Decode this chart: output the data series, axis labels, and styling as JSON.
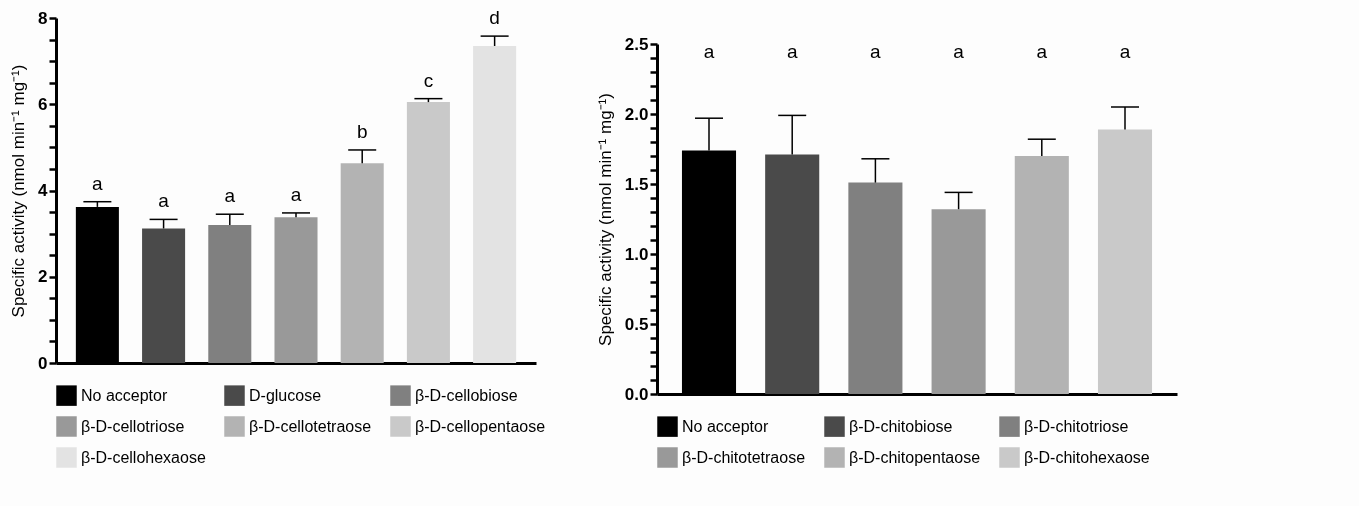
{
  "chart_data": [
    {
      "type": "bar",
      "ylabel": "Specific activity (nmol min⁻¹ mg⁻¹)",
      "categories": [
        null,
        null,
        null,
        null,
        null,
        null,
        null
      ],
      "series": [
        {
          "name": "No acceptor",
          "color": "#000000",
          "values": [
            3.62,
            null,
            null,
            null,
            null,
            null,
            null
          ],
          "errors": [
            [
              3.62,
              3.74
            ],
            null,
            null,
            null,
            null,
            null,
            null
          ]
        },
        {
          "name": "D-glucose",
          "color": "#4a4a4a",
          "values": [
            null,
            3.12,
            null,
            null,
            null,
            null,
            null
          ],
          "errors": [
            null,
            [
              3.12,
              3.33
            ],
            null,
            null,
            null,
            null,
            null
          ]
        },
        {
          "name": "β-D-cellobiose",
          "color": "#808080",
          "values": [
            null,
            null,
            3.2,
            null,
            null,
            null,
            null
          ],
          "errors": [
            null,
            null,
            [
              3.2,
              3.45
            ],
            null,
            null,
            null,
            null
          ]
        },
        {
          "name": "β-D-cellotriose",
          "color": "#999999",
          "values": [
            null,
            null,
            null,
            3.38,
            null,
            null,
            null
          ],
          "errors": [
            null,
            null,
            null,
            [
              3.38,
              3.48
            ],
            null,
            null,
            null
          ]
        },
        {
          "name": "β-D-cellotetraose",
          "color": "#b3b3b3",
          "values": [
            null,
            null,
            null,
            null,
            4.63,
            null,
            null
          ],
          "errors": [
            null,
            null,
            null,
            null,
            [
              4.63,
              4.94
            ],
            null,
            null
          ]
        },
        {
          "name": "β-D-cellopentaose",
          "color": "#c9c9c9",
          "values": [
            null,
            null,
            null,
            null,
            null,
            6.05,
            null
          ],
          "errors": [
            null,
            null,
            null,
            null,
            null,
            [
              6.05,
              6.13
            ],
            null
          ]
        },
        {
          "name": "β-D-cellohexaose",
          "color": "#e3e3e3",
          "values": [
            null,
            null,
            null,
            null,
            null,
            null,
            7.35
          ],
          "errors": [
            null,
            null,
            null,
            null,
            null,
            null,
            [
              7.35,
              7.58
            ]
          ]
        }
      ],
      "ylim": [
        0,
        8
      ],
      "yticks": [
        0,
        {
          "value": 0.5,
          "label": null
        },
        {
          "value": 1,
          "label": null
        },
        {
          "value": 1.5,
          "label": null
        },
        2,
        {
          "value": 2.5,
          "label": null
        },
        {
          "value": 3,
          "label": null
        },
        {
          "value": 3.5,
          "label": null
        },
        4,
        {
          "value": 4.5,
          "label": null
        },
        {
          "value": 5,
          "label": null
        },
        {
          "value": 5.5,
          "label": null
        },
        6,
        {
          "value": 6.5,
          "label": null
        },
        {
          "value": 7,
          "label": null
        },
        {
          "value": 7.5,
          "label": null
        },
        8
      ],
      "tick_labels": "y",
      "legend": "bottom",
      "annotations": [
        "a",
        "a",
        "a",
        "a",
        "b",
        "c",
        "d"
      ]
    },
    {
      "type": "bar",
      "ylabel": "Specific activity (nmol min⁻¹ mg⁻¹)",
      "categories": [
        null,
        null,
        null,
        null,
        null,
        null
      ],
      "series": [
        {
          "name": "No acceptor",
          "color": "#000000",
          "values": [
            1.74,
            null,
            null,
            null,
            null,
            null
          ],
          "errors": [
            [
              1.74,
              1.97
            ],
            null,
            null,
            null,
            null,
            null
          ]
        },
        {
          "name": "β-D-chitobiose",
          "color": "#4a4a4a",
          "values": [
            null,
            1.71,
            null,
            null,
            null,
            null
          ],
          "errors": [
            null,
            [
              1.71,
              1.99
            ],
            null,
            null,
            null,
            null
          ]
        },
        {
          "name": "β-D-chitotriose",
          "color": "#808080",
          "values": [
            null,
            null,
            1.51,
            null,
            null,
            null
          ],
          "errors": [
            null,
            null,
            [
              1.51,
              1.68
            ],
            null,
            null,
            null
          ]
        },
        {
          "name": "β-D-chitotetraose",
          "color": "#999999",
          "values": [
            null,
            null,
            null,
            1.32,
            null,
            null
          ],
          "errors": [
            null,
            null,
            null,
            [
              1.32,
              1.44
            ],
            null,
            null
          ]
        },
        {
          "name": "β-D-chitopentaose",
          "color": "#b3b3b3",
          "values": [
            null,
            null,
            null,
            null,
            1.7,
            null
          ],
          "errors": [
            null,
            null,
            null,
            null,
            [
              1.7,
              1.82
            ],
            null
          ]
        },
        {
          "name": "β-D-chitohexaose",
          "color": "#c9c9c9",
          "values": [
            null,
            null,
            null,
            null,
            null,
            1.89
          ],
          "errors": [
            null,
            null,
            null,
            null,
            null,
            [
              1.89,
              2.05
            ]
          ]
        }
      ],
      "ylim": [
        0,
        2.5
      ],
      "yticks": [
        {
          "value": 0,
          "label": "0.0"
        },
        {
          "value": 0.1,
          "label": null
        },
        {
          "value": 0.2,
          "label": null
        },
        {
          "value": 0.3,
          "label": null
        },
        {
          "value": 0.4,
          "label": null
        },
        0.5,
        {
          "value": 0.6,
          "label": null
        },
        {
          "value": 0.7,
          "label": null
        },
        {
          "value": 0.8,
          "label": null
        },
        {
          "value": 0.9,
          "label": null
        },
        {
          "value": 1,
          "label": "1.0"
        },
        {
          "value": 1.1,
          "label": null
        },
        {
          "value": 1.2,
          "label": null
        },
        {
          "value": 1.3,
          "label": null
        },
        {
          "value": 1.4,
          "label": null
        },
        1.5,
        {
          "value": 1.6,
          "label": null
        },
        {
          "value": 1.7,
          "label": null
        },
        {
          "value": 1.8,
          "label": null
        },
        {
          "value": 1.9,
          "label": null
        },
        {
          "value": 2,
          "label": "2.0"
        },
        {
          "value": 2.1,
          "label": null
        },
        {
          "value": 2.2,
          "label": null
        },
        {
          "value": 2.3,
          "label": null
        },
        {
          "value": 2.4,
          "label": null
        },
        2.5
      ],
      "tick_labels": "y",
      "legend": "bottom",
      "annotations": [
        "a",
        "a",
        "a",
        "a",
        "a",
        "a"
      ]
    }
  ]
}
